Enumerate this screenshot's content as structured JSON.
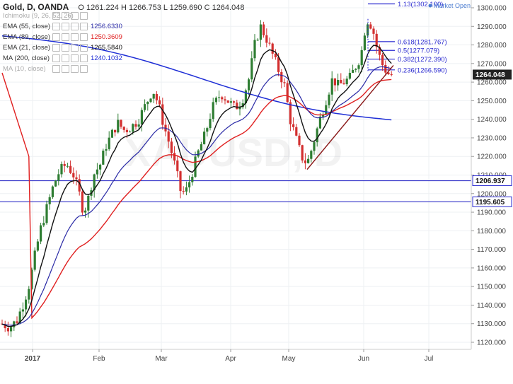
{
  "header": {
    "symbol": "Gold, D, OANDA",
    "ohlc": "O 1261.224 H 1266.753 L 1259.690 C 1264.048"
  },
  "indicators": [
    {
      "name": "Ichimoku (9, 26, 52, 26)",
      "value": "",
      "color": "#999999",
      "muted": true
    },
    {
      "name": "EMA (55, close)",
      "value": "1256.6330",
      "color": "#2a2aa6",
      "muted": false
    },
    {
      "name": "EMA (89, close)",
      "value": "1250.3609",
      "color": "#e02020",
      "muted": false
    },
    {
      "name": "EMA (21, close)",
      "value": "1265.5840",
      "color": "#111111",
      "muted": false
    },
    {
      "name": "MA (200, close)",
      "value": "1240.1032",
      "color": "#1f2fd6",
      "muted": false
    },
    {
      "name": "MA (10, close)",
      "value": "",
      "color": "#bbbbbb",
      "muted": true
    }
  ],
  "market_open_label": "Market Open",
  "chart_data": {
    "type": "candlestick",
    "ylim": [
      1117,
      1305
    ],
    "y_ticks": [
      1120,
      1130,
      1140,
      1150,
      1160,
      1170,
      1180,
      1190,
      1200,
      1210,
      1220,
      1230,
      1240,
      1250,
      1260,
      1270,
      1280,
      1290,
      1300
    ],
    "x_labels": [
      "2017",
      "Feb",
      "Mar",
      "Apr",
      "May",
      "Jun",
      "Jul"
    ],
    "candle_color_up": "#2e7d32",
    "candle_color_down": "#d32f2f",
    "last_price": 1264.048,
    "price_tags": [
      {
        "value": 1264.048,
        "label": "1264.048",
        "bg": "#222222"
      },
      {
        "value": 1206.937,
        "label": "1206.937",
        "bg": "#ffffff"
      },
      {
        "value": 1195.605,
        "label": "1195.605",
        "bg": "#ffffff"
      }
    ],
    "horizontal_lines": [
      1206.937,
      1195.605
    ],
    "fib_levels": [
      {
        "ratio_label": "1.13(1302.100)",
        "value": 1302.1
      },
      {
        "ratio_label": "0.618(1281.767)",
        "value": 1281.767
      },
      {
        "ratio_label": "0.5(1277.079)",
        "value": 1277.079
      },
      {
        "ratio_label": "0.382(1272.390)",
        "value": 1272.39
      },
      {
        "ratio_label": "0.236(1266.590)",
        "value": 1266.59
      }
    ],
    "watermark": "XAUUSD, D"
  }
}
